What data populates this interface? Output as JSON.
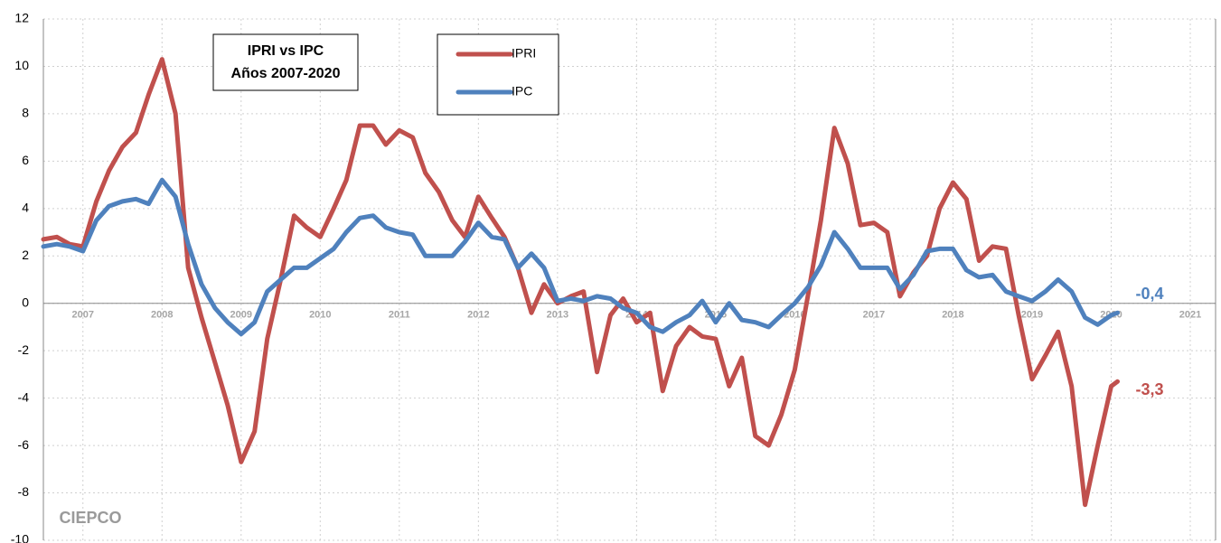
{
  "chart_data": {
    "type": "line",
    "title": "IPRI vs IPC",
    "subtitle": "Años 2007-2020",
    "logo": "CIEPCO",
    "x": [
      2007,
      2007.17,
      2007.33,
      2007.5,
      2007.67,
      2007.83,
      2008,
      2008.17,
      2008.33,
      2008.5,
      2008.67,
      2008.83,
      2009,
      2009.17,
      2009.33,
      2009.5,
      2009.67,
      2009.83,
      2010,
      2010.17,
      2010.33,
      2010.5,
      2010.67,
      2010.83,
      2011,
      2011.17,
      2011.33,
      2011.5,
      2011.67,
      2011.83,
      2012,
      2012.17,
      2012.33,
      2012.5,
      2012.67,
      2012.83,
      2013,
      2013.17,
      2013.33,
      2013.5,
      2013.67,
      2013.83,
      2014,
      2014.17,
      2014.33,
      2014.5,
      2014.67,
      2014.83,
      2015,
      2015.17,
      2015.33,
      2015.5,
      2015.67,
      2015.83,
      2016,
      2016.17,
      2016.33,
      2016.5,
      2016.67,
      2016.83,
      2017,
      2017.17,
      2017.33,
      2017.5,
      2017.67,
      2017.83,
      2018,
      2018.17,
      2018.33,
      2018.5,
      2018.67,
      2018.83,
      2019,
      2019.17,
      2019.33,
      2019.5,
      2019.67,
      2019.83,
      2020,
      2020.17,
      2020.33,
      2020.5,
      2020.58
    ],
    "series": [
      {
        "name": "IPRI",
        "color": "#c0504d",
        "end_label": "-3,3",
        "values": [
          2.7,
          2.8,
          2.5,
          2.4,
          4.3,
          5.6,
          6.6,
          7.2,
          8.8,
          10.3,
          8.0,
          1.5,
          -0.6,
          -2.5,
          -4.3,
          -6.7,
          -5.4,
          -1.5,
          1.0,
          3.7,
          3.2,
          2.8,
          4.0,
          5.2,
          7.5,
          7.5,
          6.7,
          7.3,
          7.0,
          5.5,
          4.7,
          3.5,
          2.8,
          4.5,
          3.6,
          2.8,
          1.5,
          -0.4,
          0.8,
          0.0,
          0.3,
          0.5,
          -2.9,
          -0.5,
          0.2,
          -0.8,
          -0.4,
          -3.7,
          -1.8,
          -1.0,
          -1.4,
          -1.5,
          -3.5,
          -2.3,
          -5.6,
          -6.0,
          -4.7,
          -2.8,
          0.4,
          3.5,
          7.4,
          5.9,
          3.3,
          3.4,
          3.0,
          0.3,
          1.3,
          2.0,
          4.0,
          5.1,
          4.4,
          1.8,
          2.4,
          2.3,
          -0.5,
          -3.2,
          -2.2,
          -1.2,
          -3.5,
          -8.5,
          -6.0,
          -3.5,
          -3.3
        ]
      },
      {
        "name": "IPC",
        "color": "#4f81bd",
        "end_label": "-0,4",
        "values": [
          2.4,
          2.5,
          2.4,
          2.2,
          3.5,
          4.1,
          4.3,
          4.4,
          4.2,
          5.2,
          4.5,
          2.5,
          0.8,
          -0.2,
          -0.8,
          -1.3,
          -0.8,
          0.5,
          1.0,
          1.5,
          1.5,
          1.9,
          2.3,
          3.0,
          3.6,
          3.7,
          3.2,
          3.0,
          2.9,
          2.0,
          2.0,
          2.0,
          2.6,
          3.4,
          2.8,
          2.7,
          1.5,
          2.1,
          1.5,
          0.1,
          0.2,
          0.1,
          0.3,
          0.2,
          -0.2,
          -0.4,
          -1.0,
          -1.2,
          -0.8,
          -0.5,
          0.1,
          -0.8,
          0.0,
          -0.7,
          -0.8,
          -1.0,
          -0.5,
          0.0,
          0.7,
          1.6,
          3.0,
          2.3,
          1.5,
          1.5,
          1.5,
          0.6,
          1.2,
          2.2,
          2.3,
          2.3,
          1.4,
          1.1,
          1.2,
          0.5,
          0.3,
          0.1,
          0.5,
          1.0,
          0.5,
          -0.6,
          -0.9,
          -0.5,
          -0.4
        ]
      }
    ],
    "xlim": [
      2007,
      2021.82
    ],
    "xticks": [
      {
        "value": 2007.5,
        "label": "2007"
      },
      {
        "value": 2008.5,
        "label": "2008"
      },
      {
        "value": 2009.5,
        "label": "2009"
      },
      {
        "value": 2010.5,
        "label": "2010"
      },
      {
        "value": 2011.5,
        "label": "2011"
      },
      {
        "value": 2012.5,
        "label": "2012"
      },
      {
        "value": 2013.5,
        "label": "2013"
      },
      {
        "value": 2014.5,
        "label": "2014"
      },
      {
        "value": 2015.5,
        "label": "2015"
      },
      {
        "value": 2016.5,
        "label": "2016"
      },
      {
        "value": 2017.5,
        "label": "2017"
      },
      {
        "value": 2018.5,
        "label": "2018"
      },
      {
        "value": 2019.5,
        "label": "2019"
      },
      {
        "value": 2020.5,
        "label": "2020"
      },
      {
        "value": 2021.5,
        "label": "2021"
      }
    ],
    "ylim": [
      -10,
      12
    ],
    "yticks": [
      -10,
      -8,
      -6,
      -4,
      -2,
      0,
      2,
      4,
      6,
      8,
      10,
      12
    ],
    "grid": true
  }
}
